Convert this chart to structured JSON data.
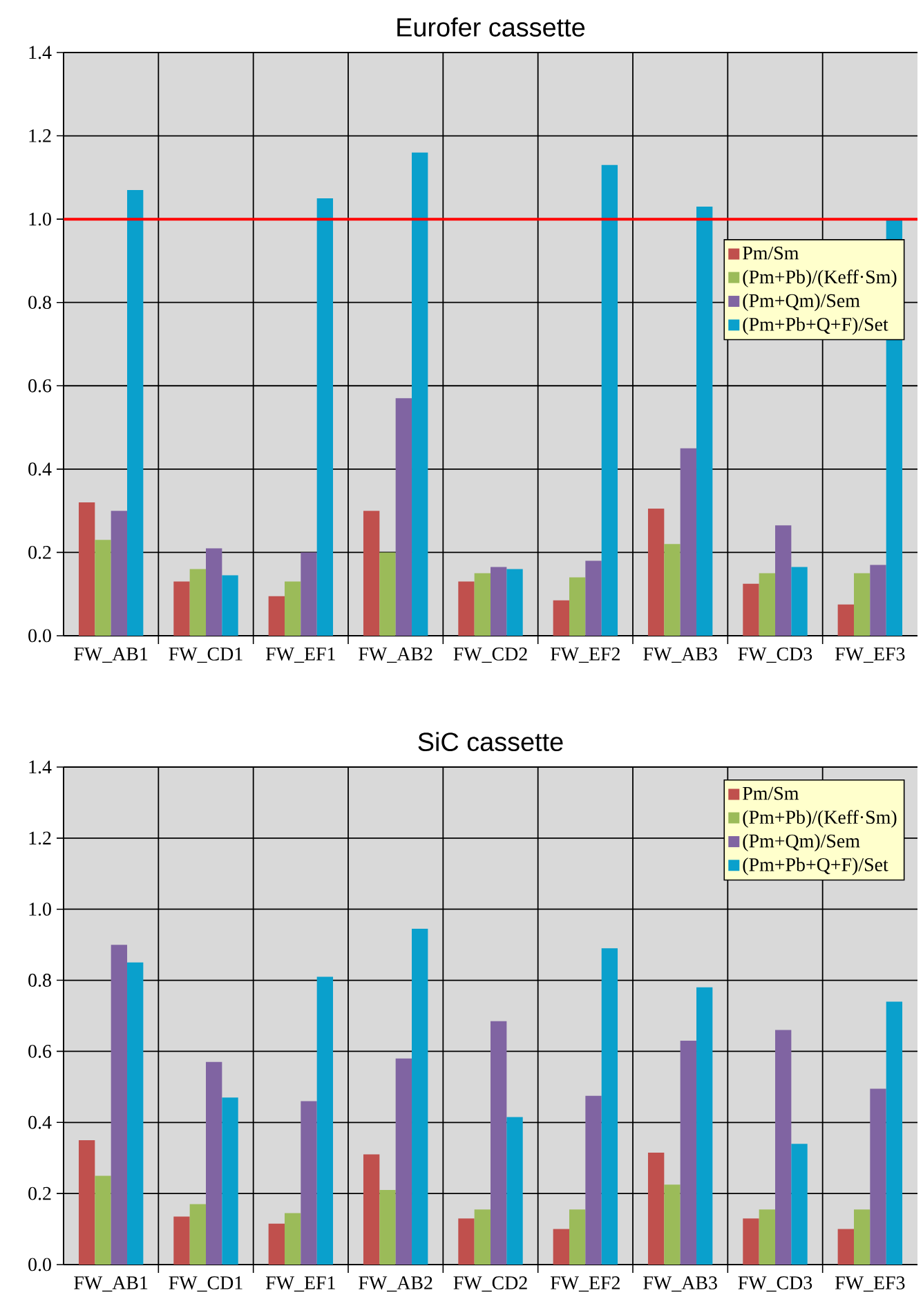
{
  "chart_data": [
    {
      "type": "bar",
      "title": "Eurofer cassette",
      "categories": [
        "FW_AB1",
        "FW_CD1",
        "FW_EF1",
        "FW_AB2",
        "FW_CD2",
        "FW_EF2",
        "FW_AB3",
        "FW_CD3",
        "FW_EF3"
      ],
      "series": [
        {
          "name": "Pm/Sm",
          "color": "#c0504d",
          "values": [
            0.32,
            0.13,
            0.095,
            0.3,
            0.13,
            0.085,
            0.305,
            0.125,
            0.075
          ]
        },
        {
          "name": "(Pm+Pb)/(Keff·Sm)",
          "color": "#9bbb59",
          "values": [
            0.23,
            0.16,
            0.13,
            0.2,
            0.15,
            0.14,
            0.22,
            0.15,
            0.15
          ]
        },
        {
          "name": "(Pm+Qm)/Sem",
          "color": "#8064a2",
          "values": [
            0.3,
            0.21,
            0.2,
            0.57,
            0.165,
            0.18,
            0.45,
            0.265,
            0.17
          ]
        },
        {
          "name": "(Pm+Pb+Q+F)/Set",
          "color": "#0aa0cc",
          "values": [
            1.07,
            0.145,
            1.05,
            1.16,
            0.16,
            1.13,
            1.03,
            0.165,
            1.0
          ]
        }
      ],
      "ylim": [
        0,
        1.4
      ],
      "yticks": [
        {
          "value": 0,
          "label": "0.0"
        },
        {
          "value": 0.2,
          "label": "0.2"
        },
        {
          "value": 0.4,
          "label": "0.4"
        },
        {
          "value": 0.6,
          "label": "0.6"
        },
        {
          "value": 0.8,
          "label": "0.8"
        },
        {
          "value": 1.0,
          "label": "1.0"
        },
        {
          "value": 1.2,
          "label": "1.2"
        },
        {
          "value": 1.4,
          "label": "1.4"
        }
      ],
      "grid": true,
      "legend": "right",
      "ref_lines": [
        {
          "axis": "y",
          "value": 1.0,
          "color": "#ff0000"
        }
      ]
    },
    {
      "type": "bar",
      "title": "SiC cassette",
      "categories": [
        "FW_AB1",
        "FW_CD1",
        "FW_EF1",
        "FW_AB2",
        "FW_CD2",
        "FW_EF2",
        "FW_AB3",
        "FW_CD3",
        "FW_EF3"
      ],
      "series": [
        {
          "name": "Pm/Sm",
          "color": "#c0504d",
          "values": [
            0.35,
            0.135,
            0.115,
            0.31,
            0.13,
            0.1,
            0.315,
            0.13,
            0.1
          ]
        },
        {
          "name": "(Pm+Pb)/(Keff·Sm)",
          "color": "#9bbb59",
          "values": [
            0.25,
            0.17,
            0.145,
            0.21,
            0.155,
            0.155,
            0.225,
            0.155,
            0.155
          ]
        },
        {
          "name": "(Pm+Qm)/Sem",
          "color": "#8064a2",
          "values": [
            0.9,
            0.57,
            0.46,
            0.58,
            0.685,
            0.475,
            0.63,
            0.66,
            0.495
          ]
        },
        {
          "name": "(Pm+Pb+Q+F)/Set",
          "color": "#0aa0cc",
          "values": [
            0.85,
            0.47,
            0.81,
            0.945,
            0.415,
            0.89,
            0.78,
            0.34,
            0.74
          ]
        }
      ],
      "ylim": [
        0,
        1.4
      ],
      "yticks": [
        {
          "value": 0,
          "label": "0.0"
        },
        {
          "value": 0.2,
          "label": "0.2"
        },
        {
          "value": 0.4,
          "label": "0.4"
        },
        {
          "value": 0.6,
          "label": "0.6"
        },
        {
          "value": 0.8,
          "label": "0.8"
        },
        {
          "value": 1.0,
          "label": "1.0"
        },
        {
          "value": 1.2,
          "label": "1.2"
        },
        {
          "value": 1.4,
          "label": "1.4"
        }
      ],
      "grid": true,
      "legend": "top right"
    }
  ]
}
